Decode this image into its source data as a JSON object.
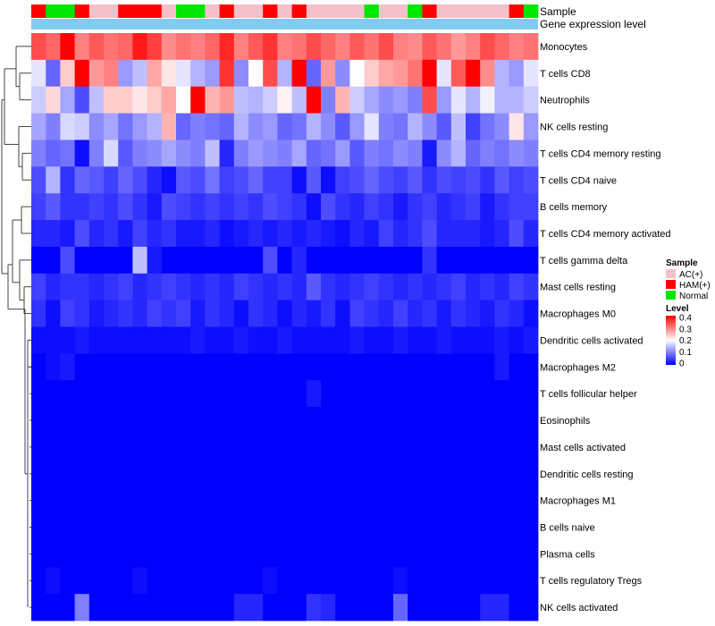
{
  "chart_data": {
    "type": "heatmap",
    "title": "",
    "annotation_rows": [
      "Sample",
      "Gene expression level"
    ],
    "rows": [
      "Monocytes",
      "T cells CD8",
      "Neutrophils",
      "NK cells resting",
      "T cells CD4 memory resting",
      "T cells CD4 naive",
      "B cells memory",
      "T cells CD4 memory activated",
      "T cells gamma delta",
      "Mast cells resting",
      "Macrophages M0",
      "Dendritic cells activated",
      "Macrophages M2",
      "T cells follicular helper",
      "Eosinophils",
      "Mast cells activated",
      "Dendritic cells resting",
      "Macrophages M1",
      "B cells naive",
      "Plasma cells",
      "T cells regulatory  Tregs",
      "NK cells activated"
    ],
    "sample_groups": [
      "HAM(+)",
      "Normal",
      "Normal",
      "HAM(+)",
      "AC(+)",
      "AC(+)",
      "HAM(+)",
      "HAM(+)",
      "HAM(+)",
      "AC(+)",
      "Normal",
      "Normal",
      "AC(+)",
      "HAM(+)",
      "AC(+)",
      "AC(+)",
      "HAM(+)",
      "AC(+)",
      "HAM(+)",
      "AC(+)",
      "AC(+)",
      "AC(+)",
      "AC(+)",
      "Normal",
      "AC(+)",
      "AC(+)",
      "Normal",
      "HAM(+)",
      "AC(+)",
      "AC(+)",
      "AC(+)",
      "AC(+)",
      "AC(+)",
      "HAM(+)",
      "Normal"
    ],
    "values": [
      [
        0.34,
        0.32,
        0.4,
        0.3,
        0.33,
        0.31,
        0.32,
        0.38,
        0.35,
        0.29,
        0.31,
        0.3,
        0.32,
        0.37,
        0.3,
        0.33,
        0.36,
        0.3,
        0.31,
        0.34,
        0.32,
        0.3,
        0.33,
        0.31,
        0.34,
        0.3,
        0.29,
        0.33,
        0.31,
        0.28,
        0.3,
        0.34,
        0.32,
        0.3,
        0.31
      ],
      [
        0.18,
        0.08,
        0.24,
        0.4,
        0.28,
        0.3,
        0.12,
        0.15,
        0.27,
        0.22,
        0.18,
        0.14,
        0.12,
        0.36,
        0.11,
        0.2,
        0.34,
        0.14,
        0.4,
        0.08,
        0.28,
        0.11,
        0.2,
        0.24,
        0.27,
        0.28,
        0.31,
        0.4,
        0.18,
        0.33,
        0.4,
        0.29,
        0.14,
        0.12,
        0.18
      ],
      [
        0.16,
        0.23,
        0.13,
        0.06,
        0.15,
        0.24,
        0.24,
        0.22,
        0.24,
        0.27,
        0.2,
        0.4,
        0.26,
        0.28,
        0.15,
        0.14,
        0.16,
        0.21,
        0.15,
        0.4,
        0.1,
        0.26,
        0.16,
        0.13,
        0.11,
        0.12,
        0.1,
        0.34,
        0.12,
        0.18,
        0.14,
        0.19,
        0.14,
        0.14,
        0.16
      ],
      [
        0.13,
        0.1,
        0.17,
        0.16,
        0.11,
        0.13,
        0.09,
        0.12,
        0.14,
        0.26,
        0.08,
        0.1,
        0.09,
        0.08,
        0.14,
        0.11,
        0.12,
        0.08,
        0.09,
        0.14,
        0.11,
        0.07,
        0.12,
        0.18,
        0.1,
        0.09,
        0.14,
        0.11,
        0.07,
        0.15,
        0.05,
        0.09,
        0.11,
        0.22,
        0.12
      ],
      [
        0.1,
        0.08,
        0.09,
        0.01,
        0.1,
        0.17,
        0.07,
        0.1,
        0.11,
        0.13,
        0.11,
        0.1,
        0.15,
        0.03,
        0.1,
        0.12,
        0.11,
        0.1,
        0.13,
        0.08,
        0.09,
        0.12,
        0.07,
        0.1,
        0.09,
        0.11,
        0.1,
        0.02,
        0.11,
        0.14,
        0.08,
        0.1,
        0.09,
        0.11,
        0.1
      ],
      [
        0.06,
        0.14,
        0.04,
        0.08,
        0.07,
        0.05,
        0.08,
        0.06,
        0.03,
        0.01,
        0.07,
        0.06,
        0.09,
        0.05,
        0.06,
        0.08,
        0.05,
        0.05,
        0.01,
        0.07,
        0.01,
        0.05,
        0.06,
        0.08,
        0.06,
        0.05,
        0.07,
        0.04,
        0.06,
        0.05,
        0.06,
        0.04,
        0.07,
        0.05,
        0.06
      ],
      [
        0.05,
        0.07,
        0.04,
        0.04,
        0.05,
        0.04,
        0.06,
        0.04,
        0.02,
        0.06,
        0.05,
        0.04,
        0.05,
        0.04,
        0.05,
        0.04,
        0.06,
        0.05,
        0.04,
        0.01,
        0.06,
        0.04,
        0.03,
        0.05,
        0.04,
        0.02,
        0.04,
        0.05,
        0.03,
        0.04,
        0.05,
        0.02,
        0.04,
        0.05,
        0.05
      ],
      [
        0.03,
        0.03,
        0.02,
        0.06,
        0.03,
        0.04,
        0.02,
        0.05,
        0.03,
        0.04,
        0.02,
        0.02,
        0.03,
        0.01,
        0.02,
        0.03,
        0.02,
        0.03,
        0.02,
        0.03,
        0.02,
        0.01,
        0.03,
        0.02,
        0.05,
        0.03,
        0.04,
        0.06,
        0.03,
        0.03,
        0.03,
        0.02,
        0.03,
        0.06,
        0.03
      ],
      [
        0.0,
        0.0,
        0.06,
        0.0,
        0.0,
        0.0,
        0.0,
        0.15,
        0.02,
        0.0,
        0.0,
        0.0,
        0.0,
        0.0,
        0.0,
        0.0,
        0.06,
        0.0,
        0.03,
        0.0,
        0.0,
        0.0,
        0.0,
        0.0,
        0.0,
        0.0,
        0.0,
        0.04,
        0.0,
        0.0,
        0.0,
        0.0,
        0.0,
        0.0,
        0.0
      ],
      [
        0.05,
        0.03,
        0.04,
        0.04,
        0.03,
        0.04,
        0.05,
        0.03,
        0.04,
        0.05,
        0.04,
        0.03,
        0.04,
        0.03,
        0.05,
        0.04,
        0.03,
        0.04,
        0.03,
        0.07,
        0.04,
        0.03,
        0.04,
        0.05,
        0.04,
        0.03,
        0.04,
        0.03,
        0.04,
        0.05,
        0.03,
        0.04,
        0.03,
        0.05,
        0.04
      ],
      [
        0.04,
        0.01,
        0.05,
        0.04,
        0.02,
        0.03,
        0.04,
        0.03,
        0.05,
        0.04,
        0.05,
        0.02,
        0.04,
        0.03,
        0.01,
        0.04,
        0.03,
        0.01,
        0.03,
        0.02,
        0.04,
        0.01,
        0.05,
        0.04,
        0.03,
        0.05,
        0.03,
        0.04,
        0.02,
        0.04,
        0.03,
        0.02,
        0.04,
        0.03,
        0.01
      ],
      [
        0.01,
        0.01,
        0.01,
        0.02,
        0.01,
        0.01,
        0.01,
        0.01,
        0.01,
        0.01,
        0.01,
        0.02,
        0.01,
        0.01,
        0.02,
        0.01,
        0.01,
        0.02,
        0.01,
        0.01,
        0.01,
        0.01,
        0.02,
        0.01,
        0.01,
        0.02,
        0.01,
        0.01,
        0.02,
        0.01,
        0.01,
        0.01,
        0.02,
        0.01,
        0.02
      ],
      [
        0.0,
        0.01,
        0.02,
        0.0,
        0.0,
        0.0,
        0.0,
        0.0,
        0.0,
        0.0,
        0.0,
        0.0,
        0.0,
        0.0,
        0.0,
        0.0,
        0.0,
        0.0,
        0.0,
        0.0,
        0.0,
        0.0,
        0.0,
        0.0,
        0.0,
        0.0,
        0.0,
        0.0,
        0.0,
        0.0,
        0.0,
        0.0,
        0.02,
        0.0,
        0.0
      ],
      [
        0.0,
        0.0,
        0.0,
        0.0,
        0.0,
        0.0,
        0.0,
        0.0,
        0.0,
        0.0,
        0.0,
        0.0,
        0.0,
        0.0,
        0.0,
        0.0,
        0.0,
        0.0,
        0.0,
        0.02,
        0.0,
        0.0,
        0.0,
        0.0,
        0.0,
        0.0,
        0.0,
        0.0,
        0.0,
        0.0,
        0.0,
        0.0,
        0.0,
        0.0,
        0.0
      ],
      [
        0.0,
        0.0,
        0.0,
        0.0,
        0.0,
        0.0,
        0.0,
        0.0,
        0.0,
        0.0,
        0.0,
        0.0,
        0.0,
        0.0,
        0.0,
        0.0,
        0.0,
        0.0,
        0.0,
        0.0,
        0.0,
        0.0,
        0.0,
        0.0,
        0.0,
        0.0,
        0.0,
        0.0,
        0.0,
        0.0,
        0.0,
        0.0,
        0.0,
        0.0,
        0.0
      ],
      [
        0.0,
        0.0,
        0.0,
        0.0,
        0.0,
        0.0,
        0.0,
        0.0,
        0.0,
        0.0,
        0.0,
        0.0,
        0.0,
        0.0,
        0.0,
        0.0,
        0.0,
        0.0,
        0.0,
        0.0,
        0.0,
        0.0,
        0.0,
        0.0,
        0.0,
        0.0,
        0.0,
        0.0,
        0.0,
        0.0,
        0.0,
        0.0,
        0.0,
        0.0,
        0.0
      ],
      [
        0.0,
        0.0,
        0.0,
        0.0,
        0.0,
        0.0,
        0.0,
        0.0,
        0.0,
        0.0,
        0.0,
        0.0,
        0.0,
        0.0,
        0.0,
        0.0,
        0.0,
        0.0,
        0.0,
        0.0,
        0.0,
        0.0,
        0.0,
        0.0,
        0.0,
        0.0,
        0.0,
        0.0,
        0.0,
        0.0,
        0.0,
        0.0,
        0.0,
        0.0,
        0.0
      ],
      [
        0.0,
        0.0,
        0.0,
        0.0,
        0.0,
        0.0,
        0.0,
        0.0,
        0.0,
        0.0,
        0.0,
        0.0,
        0.0,
        0.0,
        0.0,
        0.0,
        0.0,
        0.0,
        0.0,
        0.0,
        0.0,
        0.0,
        0.0,
        0.0,
        0.0,
        0.0,
        0.0,
        0.0,
        0.0,
        0.0,
        0.0,
        0.0,
        0.0,
        0.0,
        0.0
      ],
      [
        0.0,
        0.0,
        0.0,
        0.0,
        0.0,
        0.0,
        0.0,
        0.0,
        0.0,
        0.0,
        0.0,
        0.0,
        0.0,
        0.0,
        0.0,
        0.0,
        0.0,
        0.0,
        0.0,
        0.0,
        0.0,
        0.0,
        0.0,
        0.0,
        0.0,
        0.0,
        0.0,
        0.0,
        0.0,
        0.0,
        0.0,
        0.0,
        0.0,
        0.0,
        0.0
      ],
      [
        0.0,
        0.0,
        0.0,
        0.0,
        0.0,
        0.0,
        0.0,
        0.0,
        0.0,
        0.0,
        0.0,
        0.0,
        0.0,
        0.0,
        0.0,
        0.0,
        0.0,
        0.0,
        0.0,
        0.0,
        0.0,
        0.0,
        0.0,
        0.0,
        0.0,
        0.0,
        0.0,
        0.0,
        0.0,
        0.0,
        0.0,
        0.0,
        0.0,
        0.0,
        0.0
      ],
      [
        0.0,
        0.01,
        0.0,
        0.0,
        0.0,
        0.0,
        0.0,
        0.01,
        0.0,
        0.0,
        0.0,
        0.0,
        0.0,
        0.0,
        0.0,
        0.0,
        0.01,
        0.0,
        0.0,
        0.0,
        0.0,
        0.0,
        0.0,
        0.0,
        0.0,
        0.01,
        0.0,
        0.0,
        0.0,
        0.0,
        0.0,
        0.0,
        0.0,
        0.0,
        0.0
      ],
      [
        0.0,
        0.0,
        0.0,
        0.1,
        0.0,
        0.0,
        0.0,
        0.0,
        0.0,
        0.0,
        0.0,
        0.0,
        0.0,
        0.0,
        0.03,
        0.03,
        0.0,
        0.0,
        0.0,
        0.04,
        0.03,
        0.0,
        0.0,
        0.0,
        0.0,
        0.08,
        0.0,
        0.0,
        0.0,
        0.0,
        0.0,
        0.03,
        0.03,
        0.0,
        0.0
      ]
    ],
    "value_range": [
      0,
      0.4
    ],
    "color_scale": [
      "#0000ff",
      "#ffffff",
      "#ff0000"
    ],
    "legend": {
      "sample": {
        "title": "Sample",
        "entries": [
          {
            "label": "AC(+)",
            "color": "#f5c0cb"
          },
          {
            "label": "HAM(+)",
            "color": "#ff0000"
          },
          {
            "label": "Normal",
            "color": "#00e600"
          }
        ]
      },
      "level": {
        "title": "Level",
        "ticks": [
          "0.4",
          "0.3",
          "0.2",
          "0.1",
          "0"
        ]
      }
    },
    "gene_expression_color": "#7fccf0"
  }
}
